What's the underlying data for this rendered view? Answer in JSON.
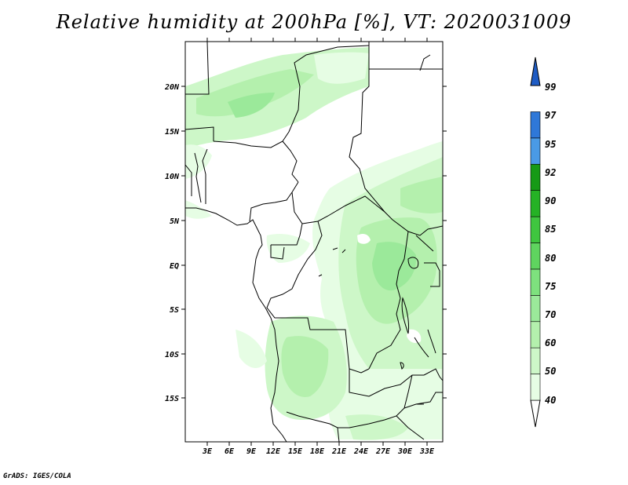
{
  "title": "Relative humidity at 200hPa [%], VT: 2020031009",
  "credit": "GrADS: IGES/COLA",
  "map": {
    "lat_labels": [
      "20N",
      "15N",
      "10N",
      "5N",
      "EQ",
      "5S",
      "10S",
      "15S"
    ],
    "lon_labels": [
      "3E",
      "6E",
      "9E",
      "12E",
      "15E",
      "18E",
      "21E",
      "24E",
      "27E",
      "30E",
      "33E"
    ]
  },
  "colorbar": {
    "levels": [
      "40",
      "50",
      "60",
      "70",
      "75",
      "80",
      "85",
      "90",
      "92",
      "95",
      "97",
      "99"
    ],
    "colors": [
      "#ffffff",
      "#e6fde4",
      "#cdf7c8",
      "#b4f0ad",
      "#9be99a",
      "#7ee17e",
      "#5fd45f",
      "#3fc63f",
      "#25b225",
      "#169a16",
      "#4a9ae6",
      "#2f78d8",
      "#1f5cc4"
    ]
  }
}
